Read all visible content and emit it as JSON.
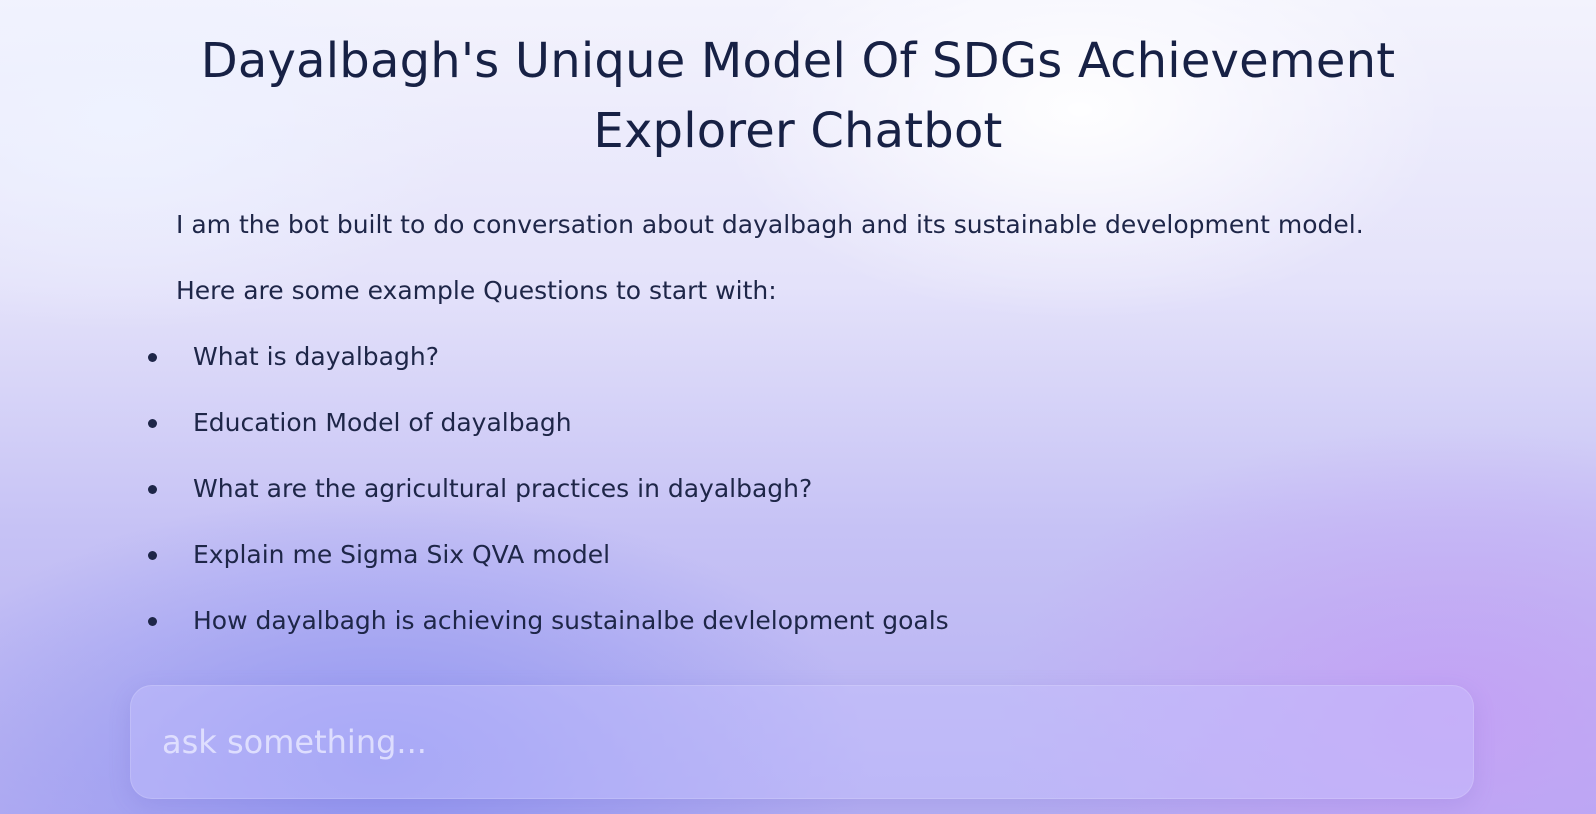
{
  "header": {
    "title_line1": "Dayalbagh's Unique Model Of SDGs Achievement",
    "title_line2": "Explorer Chatbot"
  },
  "intro": {
    "description": "I am the bot built to do conversation about dayalbagh and its sustainable development model.",
    "examples_heading": "Here are some example Questions to start with:"
  },
  "examples": [
    "What is dayalbagh?",
    "Education Model of dayalbagh",
    "What are the agricultural practices in dayalbagh?",
    "Explain me Sigma Six QVA model",
    "How dayalbagh is achieving sustainalbe devlelopment goals"
  ],
  "chat_input": {
    "placeholder": "ask something...",
    "value": ""
  }
}
